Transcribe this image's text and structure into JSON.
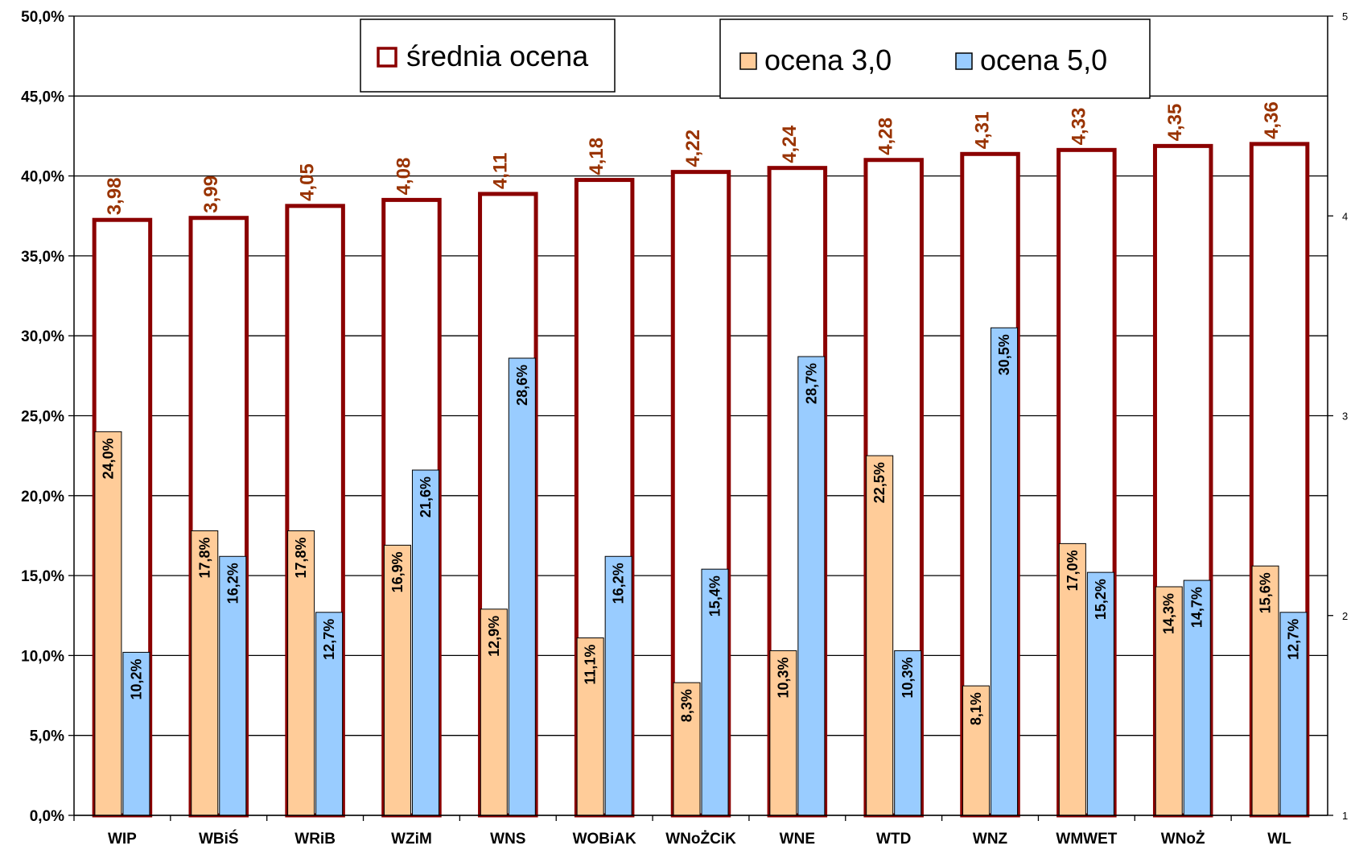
{
  "chart_data": {
    "type": "bar",
    "categories": [
      "WIP",
      "WBiŚ",
      "WRiB",
      "WZiM",
      "WNS",
      "WOBiAK",
      "WNoŻCiK",
      "WNE",
      "WTD",
      "WNZ",
      "WMWET",
      "WNoŻ",
      "WL"
    ],
    "series": [
      {
        "name": "średnia ocena",
        "axis": "right",
        "values": [
          3.98,
          3.99,
          4.05,
          4.08,
          4.11,
          4.18,
          4.22,
          4.24,
          4.28,
          4.31,
          4.33,
          4.35,
          4.36
        ],
        "labels": [
          "3,98",
          "3,99",
          "4,05",
          "4,08",
          "4,11",
          "4,18",
          "4,22",
          "4,24",
          "4,28",
          "4,31",
          "4,33",
          "4,35",
          "4,36"
        ],
        "style": {
          "fill": "#ffffff",
          "stroke": "#8b0000"
        }
      },
      {
        "name": "ocena 3,0",
        "axis": "left",
        "values": [
          24.0,
          17.8,
          17.8,
          16.9,
          12.9,
          11.1,
          8.3,
          10.3,
          22.5,
          8.1,
          17.0,
          14.3,
          15.6
        ],
        "labels": [
          "24,0%",
          "17,8%",
          "17,8%",
          "16,9%",
          "12,9%",
          "11,1%",
          "8,3%",
          "10,3%",
          "22,5%",
          "8,1%",
          "17,0%",
          "14,3%",
          "15,6%"
        ],
        "style": {
          "fill": "#ffcc99",
          "stroke": "#000000"
        }
      },
      {
        "name": "ocena 5,0",
        "axis": "left",
        "values": [
          10.2,
          16.2,
          12.7,
          21.6,
          28.6,
          16.2,
          15.4,
          28.7,
          10.3,
          30.5,
          15.2,
          14.7,
          12.7
        ],
        "labels": [
          "10,2%",
          "16,2%",
          "12,7%",
          "21,6%",
          "28,6%",
          "16,2%",
          "15,4%",
          "28,7%",
          "10,3%",
          "30,5%",
          "15,2%",
          "14,7%",
          "12,7%"
        ],
        "style": {
          "fill": "#99ccff",
          "stroke": "#000000"
        }
      }
    ],
    "y_left": {
      "min": 0,
      "max": 50,
      "step": 5,
      "tick_labels": [
        "0,0%",
        "5,0%",
        "10,0%",
        "15,0%",
        "20,0%",
        "25,0%",
        "30,0%",
        "35,0%",
        "40,0%",
        "45,0%",
        "50,0%"
      ]
    },
    "y_right": {
      "min": 1,
      "max": 5,
      "tick_labels": [
        "1",
        "2",
        "3",
        "4",
        "5"
      ]
    },
    "grid": true,
    "legend": [
      {
        "series": "średnia ocena",
        "text": "średnia ocena",
        "placement": "top-center"
      },
      {
        "series": "ocena 3,0",
        "text": "ocena 3,0",
        "placement": "top-right"
      },
      {
        "series": "ocena 5,0",
        "text": "ocena 5,0",
        "placement": "top-right"
      }
    ]
  }
}
